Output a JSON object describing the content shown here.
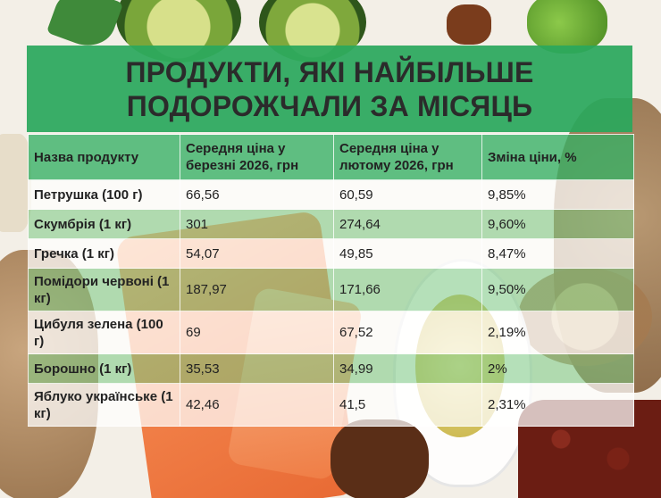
{
  "title": {
    "line1": "ПРОДУКТИ, ЯКІ НАЙБІЛЬШЕ",
    "line2": "ПОДОРОЖЧАЛИ ЗА МІСЯЦЬ"
  },
  "table": {
    "headers": [
      "Назва продукту",
      "Середня ціна у березні 2026, грн",
      "Середня ціна у лютому 2026, грн",
      "Зміна ціни, %"
    ],
    "rows": [
      {
        "name": "Петрушка (100 г)",
        "march": "66,56",
        "february": "60,59",
        "change": "9,85%"
      },
      {
        "name": "Скумбрія (1 кг)",
        "march": "301",
        "february": "274,64",
        "change": "9,60%"
      },
      {
        "name": "Гречка (1 кг)",
        "march": "54,07",
        "february": "49,85",
        "change": "8,47%"
      },
      {
        "name": "Помідори червоні (1 кг)",
        "march": "187,97",
        "february": "171,66",
        "change": "9,50%"
      },
      {
        "name": "Цибуля зелена (100 г)",
        "march": "69",
        "february": "67,52",
        "change": "2,19%"
      },
      {
        "name": "Борошно (1 кг)",
        "march": "35,53",
        "february": "34,99",
        "change": "2%"
      },
      {
        "name": "Яблуко українське (1 кг)",
        "march": "42,46",
        "february": "41,5",
        "change": "2,31%"
      }
    ]
  },
  "colors": {
    "banner": "#2aa85c",
    "header_row": "#34af64",
    "stripe": "#78c882"
  }
}
